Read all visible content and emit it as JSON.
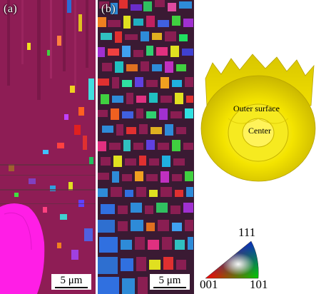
{
  "figure": {
    "panel_a": {
      "letter": "(a)",
      "scale_bar": "5 μm"
    },
    "panel_b": {
      "letter": "(b)",
      "scale_bar": "5 μm"
    },
    "texture_model": {
      "outer_label": "Outer surface",
      "center_label": "Center",
      "color": "#f2e200"
    },
    "ipf_key": {
      "label_111": "111",
      "label_001": "001",
      "label_101": "101",
      "colors": {
        "001": "#ff0000",
        "101": "#00cc00",
        "111": "#0000ff"
      }
    }
  }
}
